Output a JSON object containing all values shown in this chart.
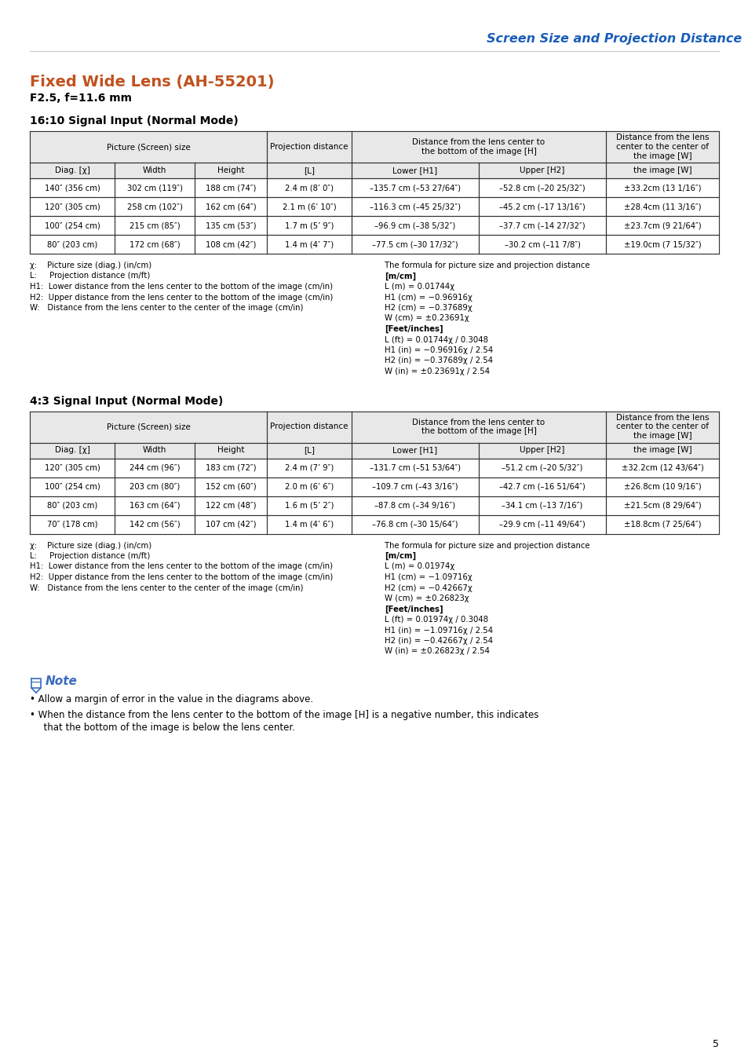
{
  "page_title": "Screen Size and Projection Distance",
  "page_title_color": "#1a5eb8",
  "section_title": "Fixed Wide Lens (AH-55201)",
  "section_title_color": "#c0521e",
  "section_subtitle": "F2.5, f=11.6 mm",
  "table1_title": "16:10 Signal Input (Normal Mode)",
  "table2_title": "4:3 Signal Input (Normal Mode)",
  "col_header2": [
    "Diag. [χ]",
    "Width",
    "Height",
    "[L]",
    "Lower [H1]",
    "Upper [H2]",
    "the image [W]"
  ],
  "table1_data": [
    [
      "140″ (356 cm)",
      "302 cm (119″)",
      "188 cm (74″)",
      "2.4 m (8’ 0″)",
      "–135.7 cm (–53 27/64″)",
      "–52.8 cm (–20 25/32″)",
      "±33.2cm (13 1/16″)"
    ],
    [
      "120″ (305 cm)",
      "258 cm (102″)",
      "162 cm (64″)",
      "2.1 m (6’ 10″)",
      "–116.3 cm (–45 25/32″)",
      "–45.2 cm (–17 13/16″)",
      "±28.4cm (11 3/16″)"
    ],
    [
      "100″ (254 cm)",
      "215 cm (85″)",
      "135 cm (53″)",
      "1.7 m (5’ 9″)",
      "–96.9 cm (–38 5/32″)",
      "–37.7 cm (–14 27/32″)",
      "±23.7cm (9 21/64″)"
    ],
    [
      "80″ (203 cm)",
      "172 cm (68″)",
      "108 cm (42″)",
      "1.4 m (4’ 7″)",
      "–77.5 cm (–30 17/32″)",
      "–30.2 cm (–11 7/8″)",
      "±19.0cm (7 15/32″)"
    ]
  ],
  "table2_data": [
    [
      "120″ (305 cm)",
      "244 cm (96″)",
      "183 cm (72″)",
      "2.4 m (7’ 9″)",
      "–131.7 cm (–51 53/64″)",
      "–51.2 cm (–20 5/32″)",
      "±32.2cm (12 43/64″)"
    ],
    [
      "100″ (254 cm)",
      "203 cm (80″)",
      "152 cm (60″)",
      "2.0 m (6’ 6″)",
      "–109.7 cm (–43 3/16″)",
      "–42.7 cm (–16 51/64″)",
      "±26.8cm (10 9/16″)"
    ],
    [
      "80″ (203 cm)",
      "163 cm (64″)",
      "122 cm (48″)",
      "1.6 m (5’ 2″)",
      "–87.8 cm (–34 9/16″)",
      "–34.1 cm (–13 7/16″)",
      "±21.5cm (8 29/64″)"
    ],
    [
      "70″ (178 cm)",
      "142 cm (56″)",
      "107 cm (42″)",
      "1.4 m (4’ 6″)",
      "–76.8 cm (–30 15/64″)",
      "–29.9 cm (–11 49/64″)",
      "±18.8cm (7 25/64″)"
    ]
  ],
  "footnotes1_left": [
    "χ:    Picture size (diag.) (in/cm)",
    "L:     Projection distance (m/ft)",
    "H1:  Lower distance from the lens center to the bottom of the image (cm/in)",
    "H2:  Upper distance from the lens center to the bottom of the image (cm/in)",
    "W:   Distance from the lens center to the center of the image (cm/in)"
  ],
  "footnotes1_right_line1": "The formula for picture size and projection distance",
  "footnotes1_right": [
    "[m/cm]",
    "L (m) = 0.01744χ",
    "H1 (cm) = −0.96916χ",
    "H2 (cm) = −0.37689χ",
    "W (cm) = ±0.23691χ",
    "[Feet/inches]",
    "L (ft) = 0.01744χ / 0.3048",
    "H1 (in) = −0.96916χ / 2.54",
    "H2 (in) = −0.37689χ / 2.54",
    "W (in) = ±0.23691χ / 2.54"
  ],
  "footnotes2_left": [
    "χ:    Picture size (diag.) (in/cm)",
    "L:     Projection distance (m/ft)",
    "H1:  Lower distance from the lens center to the bottom of the image (cm/in)",
    "H2:  Upper distance from the lens center to the bottom of the image (cm/in)",
    "W:   Distance from the lens center to the center of the image (cm/in)"
  ],
  "footnotes2_right_line1": "The formula for picture size and projection distance",
  "footnotes2_right": [
    "[m/cm]",
    "L (m) = 0.01974χ",
    "H1 (cm) = −1.09716χ",
    "H2 (cm) = −0.42667χ",
    "W (cm) = ±0.26823χ",
    "[Feet/inches]",
    "L (ft) = 0.01974χ / 0.3048",
    "H1 (in) = −1.09716χ / 2.54",
    "H2 (in) = −0.42667χ / 2.54",
    "W (in) = ±0.26823χ / 2.54"
  ],
  "note_bullet1": "Allow a margin of error in the value in the diagrams above.",
  "note_bullet2": "When the distance from the lens center to the bottom of the image [H] is a negative number, this indicates",
  "note_bullet2b": "  that the bottom of the image is below the lens center.",
  "page_number": "5",
  "bg_color": "#ffffff",
  "text_color": "#000000"
}
